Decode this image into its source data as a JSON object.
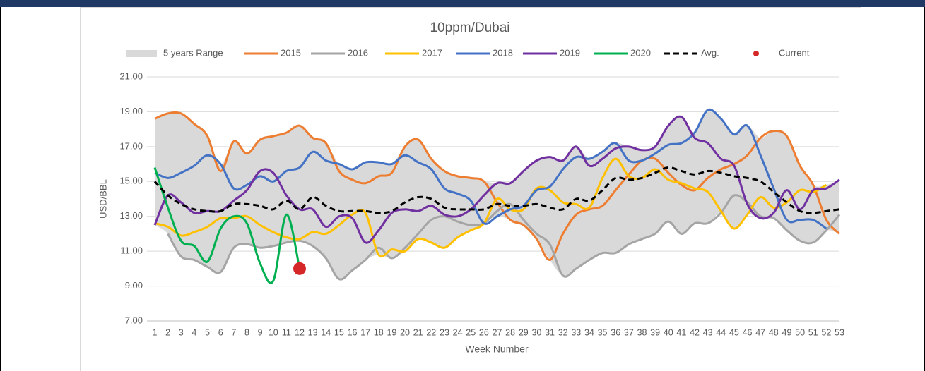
{
  "chart_data": {
    "type": "line",
    "title": "10ppm/Dubai",
    "y_label": "USD/BBL",
    "x_label": "Week Number",
    "categories": [
      "1",
      "2",
      "3",
      "4",
      "5",
      "6",
      "7",
      "8",
      "9",
      "10",
      "11",
      "12",
      "13",
      "14",
      "15",
      "16",
      "17",
      "18",
      "19",
      "20",
      "21",
      "22",
      "23",
      "24",
      "25",
      "26",
      "27",
      "28",
      "29",
      "30",
      "31",
      "32",
      "33",
      "34",
      "35",
      "36",
      "37",
      "38",
      "39",
      "40",
      "41",
      "42",
      "43",
      "44",
      "45",
      "46",
      "47",
      "48",
      "49",
      "50",
      "51",
      "52",
      "53"
    ],
    "ylim": [
      7,
      21
    ],
    "yticks": [
      {
        "value": 7,
        "label": "7.00"
      },
      {
        "value": 9,
        "label": "9.00"
      },
      {
        "value": 11,
        "label": "11.00"
      },
      {
        "value": 13,
        "label": "13.00"
      },
      {
        "value": 15,
        "label": "15.00"
      },
      {
        "value": 17,
        "label": "17.00"
      },
      {
        "value": 19,
        "label": "19.00"
      },
      {
        "value": 21,
        "label": "21.00"
      }
    ],
    "grid": true,
    "series": [
      {
        "name": "5 years Range",
        "type": "range",
        "color": "#d9d9d9",
        "values": [
          18.6,
          18.9,
          18.9,
          18.3,
          17.6,
          16.0,
          17.3,
          16.6,
          17.4,
          17.6,
          17.8,
          18.2,
          17.5,
          17.2,
          16.0,
          15.7,
          16.1,
          16.1,
          16.0,
          17.0,
          17.4,
          16.3,
          15.6,
          15.3,
          15.2,
          15.0,
          14.9,
          14.9,
          15.6,
          16.2,
          16.4,
          16.2,
          17.0,
          16.3,
          16.7,
          17.2,
          17.0,
          16.8,
          17.0,
          18.2,
          18.7,
          17.8,
          19.1,
          18.6,
          17.7,
          18.2,
          17.5,
          17.9,
          17.6,
          15.9,
          14.8,
          14.8,
          15.1
        ],
        "lower": [
          12.5,
          12.0,
          10.7,
          10.5,
          10.1,
          9.8,
          11.2,
          11.4,
          11.2,
          11.3,
          11.5,
          11.6,
          11.3,
          10.6,
          9.4,
          9.9,
          10.5,
          10.8,
          10.6,
          11.0,
          11.7,
          11.5,
          11.2,
          11.8,
          12.2,
          12.6,
          13.0,
          12.8,
          12.5,
          11.7,
          10.5,
          9.6,
          10.0,
          10.5,
          10.9,
          10.9,
          11.4,
          11.7,
          12.0,
          12.7,
          12.0,
          12.6,
          12.6,
          13.2,
          12.3,
          13.1,
          12.9,
          12.9,
          12.2,
          11.6,
          11.5,
          12.2,
          12.0
        ]
      },
      {
        "name": "2015",
        "type": "line",
        "color": "#ed7d31",
        "values": [
          18.6,
          18.9,
          18.9,
          18.3,
          17.6,
          15.6,
          17.3,
          16.6,
          17.4,
          17.6,
          17.8,
          18.2,
          17.5,
          17.2,
          15.6,
          15.1,
          14.9,
          15.3,
          15.5,
          17.0,
          17.4,
          16.3,
          15.6,
          15.3,
          15.2,
          15.0,
          13.8,
          12.8,
          12.5,
          11.7,
          10.5,
          12.0,
          13.1,
          13.4,
          13.6,
          14.5,
          15.4,
          16.2,
          16.3,
          15.5,
          14.8,
          14.5,
          15.2,
          15.7,
          16.0,
          16.5,
          17.5,
          17.9,
          17.6,
          15.9,
          14.8,
          12.8,
          12.0
        ]
      },
      {
        "name": "2016",
        "type": "line",
        "color": "#a5a5a5",
        "values": [
          null,
          12.0,
          10.7,
          10.5,
          10.1,
          9.8,
          11.2,
          11.4,
          11.2,
          11.3,
          11.5,
          11.6,
          11.3,
          10.6,
          9.4,
          9.9,
          10.5,
          11.2,
          10.6,
          11.2,
          12.0,
          12.8,
          13.0,
          12.7,
          12.5,
          12.6,
          13.3,
          13.7,
          12.8,
          12.0,
          11.4,
          9.6,
          10.0,
          10.5,
          10.9,
          10.9,
          11.4,
          11.7,
          12.0,
          12.7,
          12.0,
          12.6,
          12.6,
          13.2,
          14.2,
          13.8,
          13.0,
          12.9,
          12.2,
          11.6,
          11.5,
          12.2,
          13.1
        ]
      },
      {
        "name": "2017",
        "type": "line",
        "color": "#ffc000",
        "values": [
          12.6,
          12.4,
          11.9,
          12.1,
          12.4,
          12.9,
          12.9,
          13.0,
          12.5,
          12.1,
          11.8,
          11.7,
          12.1,
          12.0,
          12.5,
          13.1,
          13.2,
          10.8,
          11.1,
          11.0,
          11.7,
          11.5,
          11.2,
          11.8,
          12.2,
          12.6,
          14.0,
          13.4,
          13.4,
          14.6,
          14.5,
          13.8,
          13.7,
          13.5,
          15.2,
          16.3,
          15.3,
          15.2,
          15.7,
          15.1,
          14.9,
          14.6,
          14.4,
          13.3,
          12.3,
          13.1,
          14.1,
          13.5,
          13.8,
          14.5,
          14.4,
          14.8,
          null
        ]
      },
      {
        "name": "2018",
        "type": "line",
        "color": "#4472c4",
        "values": [
          15.5,
          15.2,
          15.5,
          15.9,
          16.5,
          16.0,
          14.6,
          14.8,
          15.3,
          15.0,
          15.6,
          15.8,
          16.7,
          16.2,
          16.0,
          15.7,
          16.1,
          16.1,
          16.0,
          16.5,
          16.1,
          15.7,
          14.6,
          14.3,
          13.9,
          12.6,
          13.0,
          13.4,
          13.6,
          14.5,
          14.7,
          15.7,
          16.4,
          16.3,
          16.7,
          17.2,
          16.2,
          16.2,
          16.6,
          17.1,
          17.2,
          17.8,
          19.1,
          18.6,
          17.7,
          18.2,
          16.5,
          14.6,
          12.8,
          12.8,
          12.8,
          12.3,
          null
        ]
      },
      {
        "name": "2019",
        "type": "line",
        "color": "#7030a0",
        "values": [
          12.5,
          14.2,
          13.8,
          13.2,
          13.3,
          13.3,
          13.9,
          14.5,
          15.6,
          15.5,
          14.2,
          13.4,
          13.4,
          12.4,
          13.0,
          12.9,
          11.5,
          12.2,
          13.2,
          13.4,
          13.3,
          13.6,
          13.1,
          13.0,
          13.4,
          14.2,
          14.9,
          14.9,
          15.6,
          16.2,
          16.4,
          16.2,
          17.0,
          15.9,
          16.3,
          16.9,
          17.0,
          16.8,
          17.0,
          18.2,
          18.7,
          17.5,
          17.2,
          16.3,
          15.9,
          13.7,
          12.9,
          13.2,
          14.5,
          13.4,
          14.5,
          14.6,
          15.1
        ]
      },
      {
        "name": "2020",
        "type": "line",
        "color": "#00b050",
        "values": [
          15.8,
          13.5,
          11.6,
          11.3,
          10.4,
          12.3,
          13.0,
          12.6,
          10.3,
          9.3,
          13.1,
          10.0,
          null,
          null,
          null,
          null,
          null,
          null,
          null,
          null,
          null,
          null,
          null,
          null,
          null,
          null,
          null,
          null,
          null,
          null,
          null,
          null,
          null,
          null,
          null,
          null,
          null,
          null,
          null,
          null,
          null,
          null,
          null,
          null,
          null,
          null,
          null,
          null,
          null,
          null,
          null,
          null,
          null
        ]
      },
      {
        "name": "Avg.",
        "type": "line",
        "color": "#000000",
        "dashed": true,
        "values": [
          15.0,
          14.2,
          13.7,
          13.4,
          13.3,
          13.3,
          13.7,
          13.7,
          13.6,
          13.4,
          13.9,
          13.4,
          14.1,
          13.6,
          13.3,
          13.3,
          13.3,
          13.2,
          13.3,
          13.8,
          14.1,
          14.0,
          13.5,
          13.4,
          13.4,
          13.4,
          13.7,
          13.6,
          13.6,
          13.7,
          13.5,
          13.4,
          14.0,
          13.9,
          14.5,
          15.2,
          15.1,
          15.2,
          15.5,
          15.8,
          15.6,
          15.4,
          15.6,
          15.5,
          15.3,
          15.2,
          15.0,
          14.4,
          13.8,
          13.3,
          13.2,
          13.3,
          13.4
        ]
      },
      {
        "name": "Current",
        "type": "marker",
        "color": "#d62728",
        "values": [
          null,
          null,
          null,
          null,
          null,
          null,
          null,
          null,
          null,
          null,
          null,
          10.0,
          null,
          null,
          null,
          null,
          null,
          null,
          null,
          null,
          null,
          null,
          null,
          null,
          null,
          null,
          null,
          null,
          null,
          null,
          null,
          null,
          null,
          null,
          null,
          null,
          null,
          null,
          null,
          null,
          null,
          null,
          null,
          null,
          null,
          null,
          null,
          null,
          null,
          null,
          null,
          null,
          null
        ]
      }
    ]
  }
}
